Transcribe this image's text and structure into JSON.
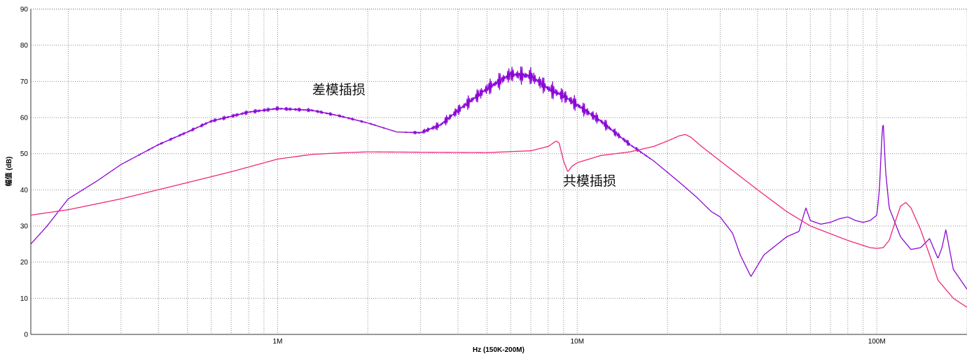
{
  "chart_data": {
    "type": "line",
    "xlabel": "Hz  (150K-200M)",
    "ylabel": "幅值 (dB)",
    "xscale": "log",
    "xlim": [
      150000,
      200000000
    ],
    "ylim": [
      0,
      90
    ],
    "y_ticks": [
      0,
      10,
      20,
      30,
      40,
      50,
      60,
      70,
      80,
      90
    ],
    "x_tick_labels": [
      {
        "value": 1000000,
        "label": "1M"
      },
      {
        "value": 10000000,
        "label": "10M"
      },
      {
        "value": 100000000,
        "label": "100M"
      }
    ],
    "grid": true,
    "annotations": [
      {
        "text": "差模插损",
        "x": 1600000,
        "y": 66.5
      },
      {
        "text": "共模插损",
        "x": 11000000,
        "y": 41.2
      }
    ],
    "series": [
      {
        "id": "dm",
        "color": "#8B08D6",
        "noise": [
          {
            "from": 300000,
            "to": 2600000,
            "amp": 0.6
          },
          {
            "from": 2600000,
            "to": 18000000,
            "amp": 2.6
          }
        ],
        "x": [
          150000,
          170000,
          200000,
          250000,
          300000,
          400000,
          500000,
          600000,
          800000,
          1000000,
          1300000,
          1600000,
          2000000,
          2500000,
          3000000,
          3500000,
          4000000,
          5000000,
          6000000,
          7000000,
          8000000,
          9000000,
          10000000,
          12000000,
          15000000,
          18000000,
          22000000,
          25000000,
          28000000,
          30000000,
          33000000,
          35000000,
          38000000,
          42000000,
          50000000,
          55000000,
          57000000,
          58000000,
          60000000,
          65000000,
          70000000,
          75000000,
          80000000,
          85000000,
          90000000,
          95000000,
          100000000,
          102000000,
          104000000,
          105000000,
          107000000,
          110000000,
          120000000,
          130000000,
          140000000,
          150000000,
          160000000,
          165000000,
          170000000,
          180000000,
          200000000
        ],
        "y": [
          25,
          30,
          37.5,
          42.5,
          47,
          52.5,
          56,
          59,
          61.5,
          62.5,
          62,
          60.5,
          58.5,
          56,
          55.8,
          58,
          62,
          68,
          72,
          71.5,
          68,
          66,
          63.5,
          59,
          52.5,
          48,
          42,
          38,
          34,
          32.5,
          28,
          22,
          16,
          22,
          27,
          28.5,
          33,
          35,
          31.5,
          30.5,
          31,
          32,
          32.5,
          31.5,
          31,
          31.5,
          33,
          40,
          55,
          59,
          45,
          35,
          27,
          23.5,
          24,
          26.5,
          21,
          24,
          29,
          18,
          12.5
        ]
      },
      {
        "id": "cm",
        "color": "#F0287A",
        "noise": [],
        "x": [
          150000,
          200000,
          300000,
          500000,
          700000,
          1000000,
          1300000,
          1700000,
          2000000,
          3000000,
          5000000,
          7000000,
          8000000,
          8500000,
          8700000,
          9000000,
          9300000,
          9600000,
          10000000,
          12000000,
          15000000,
          18000000,
          20000000,
          22000000,
          23000000,
          24000000,
          26000000,
          30000000,
          40000000,
          50000000,
          60000000,
          80000000,
          95000000,
          100000000,
          105000000,
          110000000,
          115000000,
          120000000,
          125000000,
          130000000,
          140000000,
          150000000,
          160000000,
          180000000,
          200000000
        ],
        "y": [
          33,
          34.5,
          37.5,
          42,
          45,
          48.5,
          49.8,
          50.3,
          50.5,
          50.4,
          50.3,
          50.8,
          52,
          53.5,
          53,
          48,
          45,
          46.5,
          47.5,
          49.5,
          50.5,
          52,
          53.5,
          55,
          55.3,
          54.5,
          52,
          48,
          40,
          34,
          30,
          26,
          24,
          23.8,
          24,
          26,
          31,
          35.5,
          36.5,
          35,
          29,
          22,
          15,
          10,
          7.5
        ]
      }
    ]
  }
}
